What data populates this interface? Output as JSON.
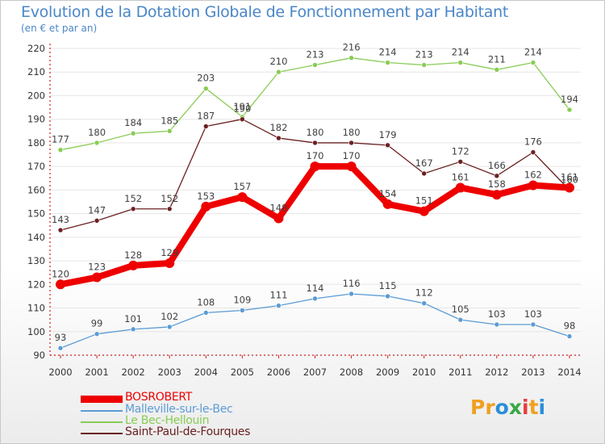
{
  "header": {
    "title": "Evolution de la Dotation Globale de Fonctionnement par Habitant",
    "subtitle": "(en € et par an)"
  },
  "chart_data": {
    "type": "line",
    "title": "Evolution de la Dotation Globale de Fonctionnement par Habitant",
    "subtitle": "(en € et par an)",
    "xlabel": "",
    "ylabel": "",
    "ylim": [
      90,
      220
    ],
    "y_ticks": [
      90,
      100,
      110,
      120,
      130,
      140,
      150,
      160,
      170,
      180,
      190,
      200,
      210,
      220
    ],
    "grid": true,
    "categories": [
      "2000",
      "2001",
      "2002",
      "2003",
      "2004",
      "2005",
      "2006",
      "2007",
      "2008",
      "2009",
      "2010",
      "2011",
      "2012",
      "2013",
      "2014"
    ],
    "series": [
      {
        "name": "Malleville-sur-le-Bec",
        "color": "#5b9bd5",
        "values": [
          93,
          99,
          101,
          102,
          108,
          109,
          111,
          114,
          116,
          115,
          112,
          105,
          103,
          103,
          98
        ]
      },
      {
        "name": "Le Bec-Hellouin",
        "color": "#88cc55",
        "values": [
          177,
          180,
          184,
          185,
          203,
          191,
          210,
          213,
          216,
          214,
          213,
          214,
          211,
          214,
          194
        ]
      },
      {
        "name": "Saint-Paul-de-Fourques",
        "color": "#6b2020",
        "values": [
          143,
          147,
          152,
          152,
          187,
          190,
          182,
          180,
          180,
          179,
          167,
          172,
          166,
          176,
          160
        ]
      },
      {
        "name": "BOSROBERT",
        "color": "#ee0000",
        "values": [
          120,
          123,
          128,
          129,
          153,
          157,
          148,
          170,
          170,
          154,
          151,
          161,
          158,
          162,
          161
        ]
      }
    ],
    "legend_position": "bottom-left"
  },
  "legend": [
    {
      "label": "BOSROBERT",
      "color": "#ee0000"
    },
    {
      "label": "Malleville-sur-le-Bec",
      "color": "#5b9bd5"
    },
    {
      "label": "Le Bec-Hellouin",
      "color": "#88cc55"
    },
    {
      "label": "Saint-Paul-de-Fourques",
      "color": "#6b2020"
    }
  ],
  "logo": {
    "text": "Proxiti",
    "letters": [
      "P",
      "r",
      "o",
      "x",
      "i",
      "t",
      "i"
    ],
    "colors": [
      "#f0a020",
      "#f0a020",
      "#2a8fd8",
      "#3aa845",
      "#e83c3c",
      "#f0a020",
      "#2a8fd8"
    ]
  }
}
